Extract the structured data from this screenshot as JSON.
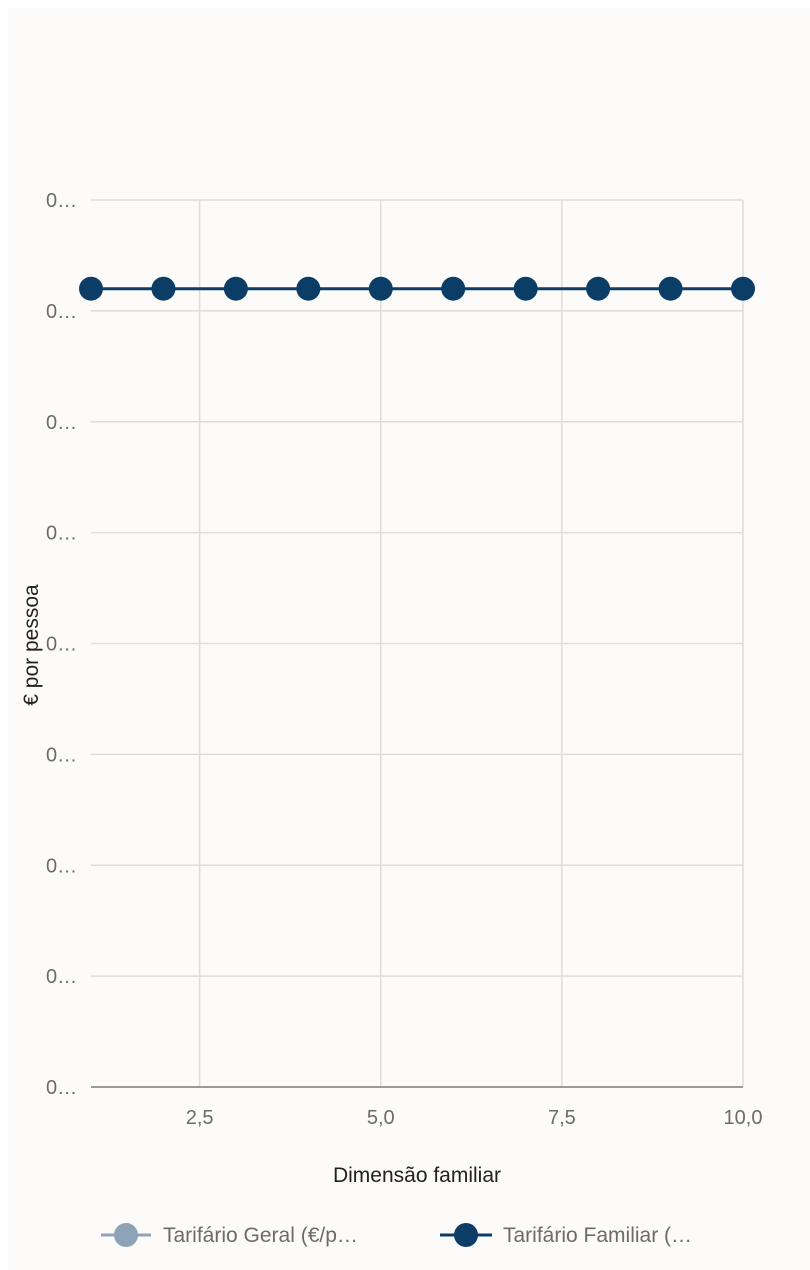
{
  "chart_data": {
    "type": "line",
    "xlabel": "Dimensão familiar",
    "ylabel": "€ por pessoa",
    "xlim": [
      1,
      10
    ],
    "ylim": [
      0,
      8
    ],
    "x_ticks": [
      2.5,
      5.0,
      7.5,
      10.0
    ],
    "x_tick_labels": [
      "2,5",
      "5,0",
      "7,5",
      "10,0"
    ],
    "y_ticks": [
      0,
      1,
      2,
      3,
      4,
      5,
      6,
      7,
      8
    ],
    "y_tick_labels": [
      "0…",
      "0…",
      "0…",
      "0…",
      "0…",
      "0…",
      "0…",
      "0…",
      "0…"
    ],
    "grid": true,
    "legend_position": "bottom",
    "series": [
      {
        "name": "Tarifário Geral (€/p…",
        "color": "#8fa3b8",
        "x": [],
        "y": []
      },
      {
        "name": "Tarifário Familiar (…",
        "color": "#0c3d66",
        "x": [
          1,
          2,
          3,
          4,
          5,
          6,
          7,
          8,
          9,
          10
        ],
        "y": [
          7.2,
          7.2,
          7.2,
          7.2,
          7.2,
          7.2,
          7.2,
          7.2,
          7.2,
          7.2
        ]
      }
    ]
  }
}
